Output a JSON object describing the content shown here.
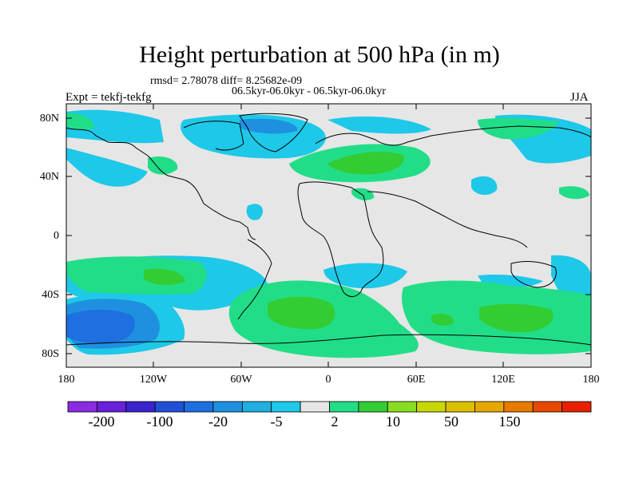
{
  "title": "Height perturbation at 500 hPa (in m)",
  "stats": "rmsd= 2.78078 diff= 8.25682e-09",
  "period": "06.5kyr-06.0kyr - 06.5kyr-06.0kyr",
  "experiment": "Expt = tekfj-tekfg",
  "season": "JJA",
  "map": {
    "lat_labels": [
      "80N",
      "40N",
      "0",
      "40S",
      "80S"
    ],
    "lon_labels": [
      "180",
      "120W",
      "60W",
      "0",
      "60E",
      "120E",
      "180"
    ]
  },
  "colorbar": {
    "colors": [
      "#8a2be2",
      "#6a1fd9",
      "#3a22cc",
      "#2050d8",
      "#1e6fe0",
      "#1f90e0",
      "#1fb0e0",
      "#1ec8e8",
      "#e6e6e6",
      "#22dd88",
      "#33cc33",
      "#88dd22",
      "#c8d800",
      "#dcc000",
      "#e6a800",
      "#e87a00",
      "#e84800",
      "#e82000"
    ],
    "labels": [
      "-200",
      "-100",
      "-20",
      "-5",
      "2",
      "10",
      "50",
      "150"
    ]
  }
}
